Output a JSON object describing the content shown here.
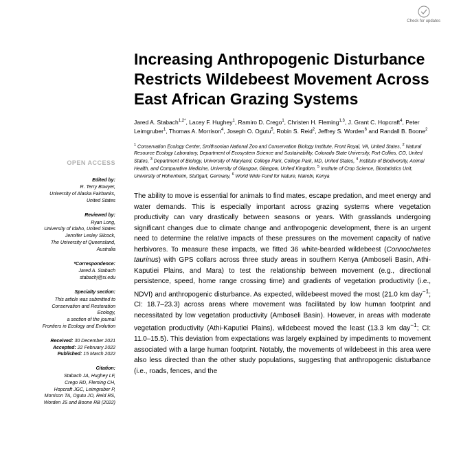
{
  "checkUpdates": "Check for updates",
  "title": "Increasing Anthropogenic Disturbance Restricts Wildebeest Movement Across East African Grazing Systems",
  "authors": "Jared A. Stabach<sup>1,2*</sup>, Lacey F. Hughey<sup>1</sup>, Ramiro D. Crego<sup>1</sup>, Christen H. Fleming<sup>1,3</sup>, J. Grant C. Hopcraft<sup>4</sup>, Peter Leimgruber<sup>1</sup>, Thomas A. Morrison<sup>4</sup>, Joseph O. Ogutu<sup>5</sup>, Robin S. Reid<sup>2</sup>, Jeffrey S. Worden<sup>6</sup> and Randall B. Boone<sup>2</sup>",
  "affiliations": "<sup>1</sup> Conservation Ecology Center, Smithsonian National Zoo and Conservation Biology Institute, Front Royal, VA, United States, <sup>2</sup> Natural Resource Ecology Laboratory, Department of Ecosystem Science and Sustainability, Colorado State University, Fort Collins, CO, United States, <sup>3</sup> Department of Biology, University of Maryland, College Park, College Park, MD, United States, <sup>4</sup> Institute of Biodiversity, Animal Health, and Comparative Medicine, University of Glasgow, Glasgow, United Kingdom, <sup>5</sup> Institute of Crop Science, Biostatistics Unit, University of Hohenheim, Stuttgart, Germany, <sup>6</sup> World Wide Fund for Nature, Nairobi, Kenya",
  "abstract": "The ability to move is essential for animals to find mates, escape predation, and meet energy and water demands. This is especially important across grazing systems where vegetation productivity can vary drastically between seasons or years. With grasslands undergoing significant changes due to climate change and anthropogenic development, there is an urgent need to determine the relative impacts of these pressures on the movement capacity of native herbivores. To measure these impacts, we fitted 36 white-bearded wildebeest (<i>Connochaetes taurinus</i>) with GPS collars across three study areas in southern Kenya (Amboseli Basin, Athi-Kaputiei Plains, and Mara) to test the relationship between movement (e.g., directional persistence, speed, home range crossing time) and gradients of vegetation productivity (i.e., NDVI) and anthropogenic disturbance. As expected, wildebeest moved the most (21.0 km day<sup>−1</sup>; CI: 18.7–23.3) across areas where movement was facilitated by low human footprint and necessitated by low vegetation productivity (Amboseli Basin). However, in areas with moderate vegetation productivity (Athi-Kaputiei Plains), wildebeest moved the least (13.3 km day<sup>−1</sup>; CI: 11.0–15.5). This deviation from expectations was largely explained by impediments to movement associated with a large human footprint. Notably, the movements of wildebeest in this area were also less directed than the other study populations, suggesting that anthropogenic disturbance (i.e., roads, fences, and the",
  "sidebar": {
    "openAccess": "OPEN ACCESS",
    "editedByLabel": "Edited by:",
    "editedBy": [
      "R. Terry Bowyer,",
      "University of Alaska Fairbanks,",
      "United States"
    ],
    "reviewedByLabel": "Reviewed by:",
    "reviewedBy": [
      "Ryan Long,",
      "University of Idaho, United States",
      "Jennifer Lesley Silcock,",
      "The University of Queensland,",
      "Australia"
    ],
    "correspondenceLabel": "*Correspondence:",
    "correspondence": [
      "Jared A. Stabach",
      "stabachj@si.edu"
    ],
    "specialtyLabel": "Specialty section:",
    "specialty": [
      "This article was submitted to",
      "Conservation and Restoration",
      "Ecology,",
      "a section of the journal",
      "Frontiers in Ecology and Evolution"
    ],
    "receivedLabel": "Received:",
    "received": "30 December 2021",
    "acceptedLabel": "Accepted:",
    "accepted": "22 February 2022",
    "publishedLabel": "Published:",
    "published": "15 March 2022",
    "citationLabel": "Citation:",
    "citation": [
      "Stabach JA, Hughey LF,",
      "Crego RD, Fleming CH,",
      "Hopcraft JGC, Leimgruber P,",
      "Morrison TA, Ogutu JO, Reid RS,",
      "Worden JS and Boone RB (2022)"
    ]
  }
}
